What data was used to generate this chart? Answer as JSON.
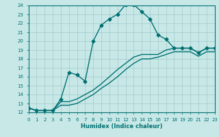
{
  "xlabel": "Humidex (Indice chaleur)",
  "bg_color": "#c8e8e8",
  "grid_color": "#a0c8c8",
  "line_color": "#007070",
  "xlim": [
    0,
    23
  ],
  "ylim": [
    12,
    24
  ],
  "xticks": [
    0,
    1,
    2,
    3,
    4,
    5,
    6,
    7,
    8,
    9,
    10,
    11,
    12,
    13,
    14,
    15,
    16,
    17,
    18,
    19,
    20,
    21,
    22,
    23
  ],
  "yticks": [
    12,
    13,
    14,
    15,
    16,
    17,
    18,
    19,
    20,
    21,
    22,
    23,
    24
  ],
  "line1_x": [
    0,
    1,
    2,
    3,
    4,
    5,
    6,
    7,
    8,
    9,
    10,
    11,
    12,
    13,
    14,
    15,
    16,
    17,
    18,
    19,
    20,
    21,
    22,
    23
  ],
  "line1_y": [
    12.5,
    12.2,
    12.2,
    12.2,
    13.5,
    16.5,
    16.2,
    15.5,
    20.0,
    21.8,
    22.5,
    23.0,
    24.1,
    24.1,
    23.3,
    22.5,
    20.7,
    20.2,
    19.2,
    19.2,
    19.2,
    18.7,
    19.2,
    19.2
  ],
  "line2_x": [
    0,
    1,
    2,
    3,
    4,
    5,
    6,
    7,
    8,
    9,
    10,
    11,
    12,
    13,
    14,
    15,
    16,
    17,
    18,
    19,
    20,
    21,
    22,
    23
  ],
  "line2_y": [
    12.5,
    12.2,
    12.2,
    12.2,
    13.2,
    13.2,
    13.5,
    14.0,
    14.5,
    15.2,
    16.0,
    16.8,
    17.5,
    18.2,
    18.5,
    18.5,
    18.5,
    19.0,
    19.2,
    19.2,
    19.2,
    18.7,
    19.2,
    19.2
  ],
  "line3_x": [
    0,
    1,
    2,
    3,
    4,
    5,
    6,
    7,
    8,
    9,
    10,
    11,
    12,
    13,
    14,
    15,
    16,
    17,
    18,
    19,
    20,
    21,
    22,
    23
  ],
  "line3_y": [
    12.5,
    12.2,
    12.2,
    12.2,
    12.8,
    12.8,
    13.0,
    13.5,
    14.0,
    14.7,
    15.3,
    16.0,
    16.8,
    17.5,
    18.0,
    18.0,
    18.2,
    18.5,
    18.8,
    18.8,
    18.8,
    18.3,
    18.8,
    18.8
  ],
  "xlabel_fontsize": 6,
  "tick_fontsize": 5,
  "linewidth": 1.0,
  "marker_size": 2.5
}
